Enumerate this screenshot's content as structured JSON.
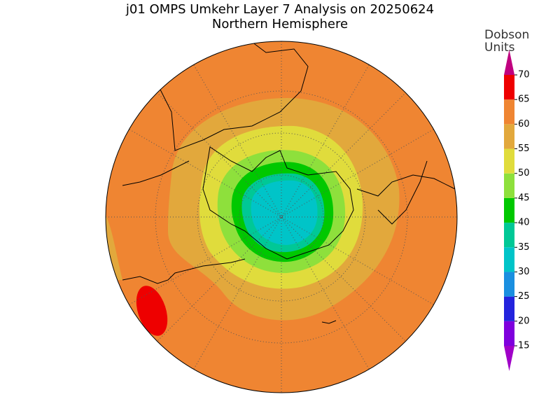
{
  "title": "j01 OMPS Umkehr Layer 7 Analysis on 20250624",
  "subtitle": "Northern Hemisphere",
  "colorbar": {
    "label_lines": [
      "Dobson",
      "Units"
    ],
    "levels": [
      15,
      20,
      25,
      30,
      35,
      40,
      45,
      50,
      55,
      60,
      65,
      70
    ],
    "colors": [
      "#7f00dd",
      "#2323dd",
      "#1a8fe0",
      "#00c4c8",
      "#00c896",
      "#00c800",
      "#8ee03c",
      "#e0dc3c",
      "#e2a83c",
      "#ef8532",
      "#ee0000"
    ],
    "under_color": "#a000c8",
    "over_color": "#c0007f"
  }
}
